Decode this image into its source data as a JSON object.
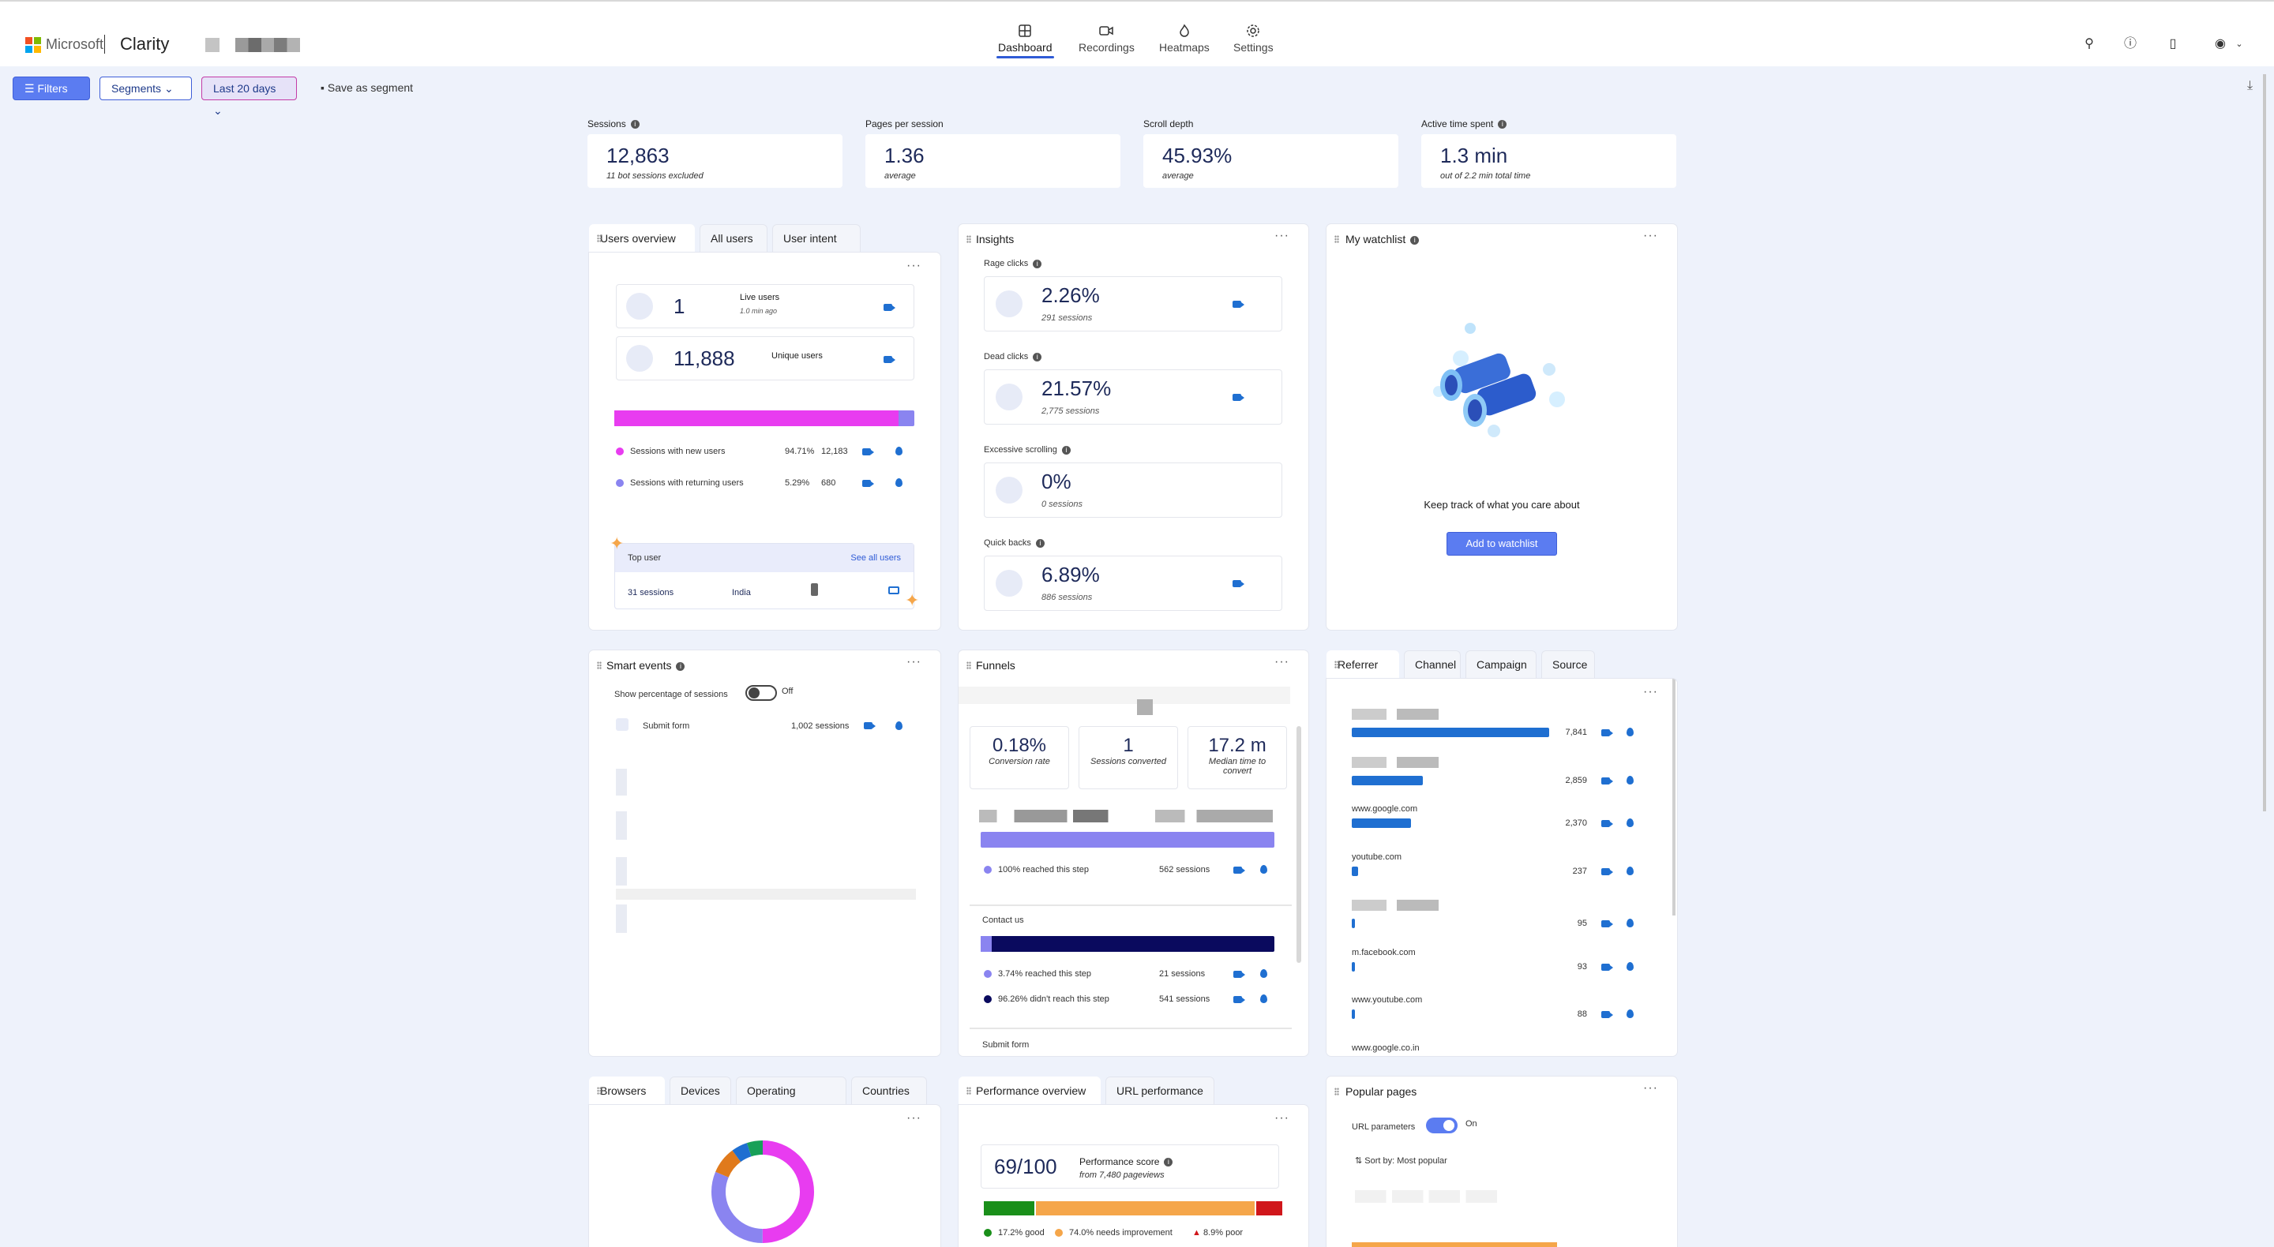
{
  "brand": {
    "company": "Microsoft",
    "app": "Clarity"
  },
  "nav": [
    {
      "label": "Dashboard",
      "icon": "dashboard-icon"
    },
    {
      "label": "Recordings",
      "icon": "camera-icon"
    },
    {
      "label": "Heatmaps",
      "icon": "flame-icon"
    },
    {
      "label": "Settings",
      "icon": "gear-icon"
    }
  ],
  "toolbar": {
    "filters": "Filters",
    "segments": "Segments",
    "date": "Last 20 days",
    "save_segment": "Save as segment"
  },
  "metrics": [
    {
      "label": "Sessions",
      "value": "12,863",
      "sub": "11 bot sessions excluded"
    },
    {
      "label": "Pages per session",
      "value": "1.36",
      "sub": "average"
    },
    {
      "label": "Scroll depth",
      "value": "45.93%",
      "sub": "average"
    },
    {
      "label": "Active time spent",
      "value": "1.3 min",
      "sub": "out of 2.2 min total time"
    }
  ],
  "users": {
    "tabs": [
      "Users overview",
      "All users",
      "User intent"
    ],
    "live_value": "1",
    "live_label": "Live users",
    "live_sub": "1.0 min ago",
    "unique_value": "11,888",
    "unique_label": "Unique users",
    "new_label": "Sessions with new users",
    "new_pct": "94.71%",
    "new_count": "12,183",
    "new_share": 0.9471,
    "ret_label": "Sessions with returning users",
    "ret_pct": "5.29%",
    "ret_count": "680",
    "top_user": "Top user",
    "see_all": "See all users",
    "top_sessions": "31 sessions",
    "top_country": "India"
  },
  "insights": {
    "title": "Insights",
    "items": [
      {
        "label": "Rage clicks",
        "value": "2.26%",
        "sub": "291 sessions"
      },
      {
        "label": "Dead clicks",
        "value": "21.57%",
        "sub": "2,775 sessions"
      },
      {
        "label": "Excessive scrolling",
        "value": "0%",
        "sub": "0 sessions"
      },
      {
        "label": "Quick backs",
        "value": "6.89%",
        "sub": "886 sessions"
      }
    ]
  },
  "watchlist": {
    "title": "My watchlist",
    "message": "Keep track of what you care about",
    "button": "Add to watchlist"
  },
  "smart_events": {
    "title": "Smart events",
    "toggle_label": "Show percentage of sessions",
    "toggle_state": "Off",
    "event": "Submit form",
    "event_count": "1,002 sessions"
  },
  "funnels": {
    "title": "Funnels",
    "conversion": "0.18%",
    "conversion_label": "Conversion rate",
    "converted": "1",
    "converted_label": "Sessions converted",
    "median": "17.2 m",
    "median_label": "Median time to convert",
    "step1_reached": "100% reached this step",
    "step1_sessions": "562 sessions",
    "step2_title": "Contact us",
    "step2_reached": "3.74% reached this step",
    "step2_reached_sessions": "21 sessions",
    "step2_not": "96.26% didn't reach this step",
    "step2_not_sessions": "541 sessions",
    "step3_title": "Submit form"
  },
  "referrer": {
    "tabs": [
      "Referrer",
      "Channel",
      "Campaign",
      "Source"
    ],
    "rows": [
      {
        "name": "",
        "count": "7,841",
        "share": 1.0
      },
      {
        "name": "",
        "count": "2,859",
        "share": 0.36
      },
      {
        "name": "www.google.com",
        "count": "2,370",
        "share": 0.3
      },
      {
        "name": "youtube.com",
        "count": "237",
        "share": 0.03
      },
      {
        "name": "",
        "count": "95",
        "share": 0.012
      },
      {
        "name": "m.facebook.com",
        "count": "93",
        "share": 0.012
      },
      {
        "name": "www.youtube.com",
        "count": "88",
        "share": 0.011
      },
      {
        "name": "www.google.co.in",
        "count": "",
        "share": 0.0
      }
    ]
  },
  "browsers": {
    "tabs": [
      "Browsers",
      "Devices",
      "Operating systems",
      "Countries"
    ]
  },
  "performance": {
    "tabs": [
      "Performance overview",
      "URL performance"
    ],
    "score": "69/100",
    "score_label": "Performance score",
    "score_sub": "from 7,480 pageviews",
    "good": "17.2% good",
    "needs": "74.0% needs improvement",
    "poor": "8.9% poor",
    "good_share": 0.172,
    "needs_share": 0.74,
    "poor_share": 0.089,
    "colors": {
      "good": "#1a8f1a",
      "needs": "#f5a64a",
      "poor": "#d0161b"
    }
  },
  "popular_pages": {
    "title": "Popular pages",
    "toggle_label": "URL parameters",
    "toggle_state": "On",
    "sort": "Sort by: Most popular"
  },
  "colors": {
    "accent": "#5b7cf1",
    "magenta": "#e83cf0",
    "lavender": "#8a84f0",
    "blue": "#1f6fd1",
    "navy": "#0a0a5e"
  }
}
